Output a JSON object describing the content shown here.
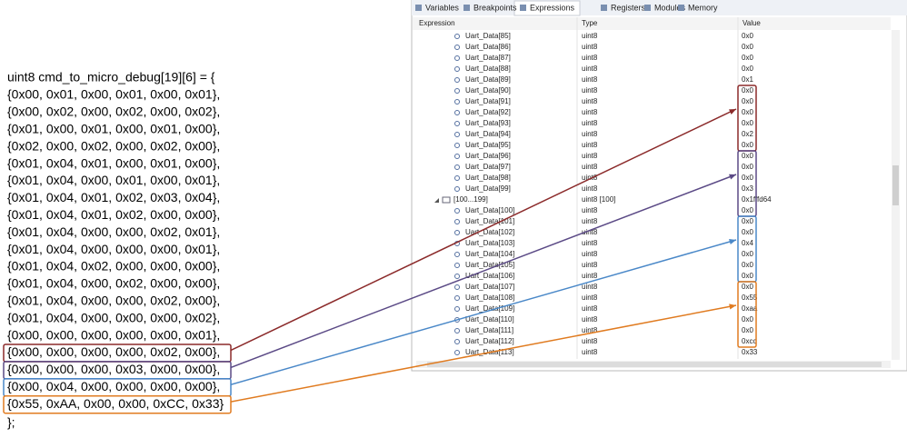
{
  "code": {
    "header": "uint8 cmd_to_micro_debug[19][6] = {",
    "rows": [
      "{0x00, 0x01, 0x00, 0x01, 0x00, 0x01},",
      "{0x00, 0x02, 0x00, 0x02, 0x00, 0x02},",
      "{0x01, 0x00, 0x01, 0x00, 0x01, 0x00},",
      "{0x02, 0x00, 0x02, 0x00, 0x02, 0x00},",
      "{0x01, 0x04, 0x01, 0x00, 0x01, 0x00},",
      "{0x01, 0x04, 0x00, 0x01, 0x00, 0x01},",
      "{0x01, 0x04, 0x01, 0x02, 0x03, 0x04},",
      "{0x01, 0x04, 0x01, 0x02, 0x00, 0x00},",
      "{0x01, 0x04, 0x00, 0x00, 0x02, 0x01},",
      "{0x01, 0x04, 0x00, 0x00, 0x00, 0x01},",
      "{0x01, 0x04, 0x02, 0x00, 0x00, 0x00},",
      "{0x01, 0x04, 0x00, 0x02, 0x00, 0x00},",
      "{0x01, 0x04, 0x00, 0x00, 0x02, 0x00},",
      "{0x01, 0x04, 0x00, 0x00, 0x00, 0x02},",
      "{0x00, 0x00, 0x00, 0x00, 0x00, 0x01},",
      "{0x00, 0x00, 0x00, 0x00, 0x02, 0x00},",
      "{0x00, 0x00, 0x00, 0x03, 0x00, 0x00},",
      "{0x00, 0x04, 0x00, 0x00, 0x00, 0x00},",
      "{0x55, 0xAA, 0x00, 0x00, 0xCC, 0x33}"
    ],
    "footer": "};"
  },
  "panel": {
    "tabs": [
      "Variables",
      "Breakpoints",
      "Expressions",
      "Registers",
      "Modules",
      "Memory"
    ],
    "columns": [
      "Expression",
      "Type",
      "Value"
    ],
    "rows": [
      [
        "Uart_Data[85]",
        "uint8",
        "0x0"
      ],
      [
        "Uart_Data[86]",
        "uint8",
        "0x0"
      ],
      [
        "Uart_Data[87]",
        "uint8",
        "0x0"
      ],
      [
        "Uart_Data[88]",
        "uint8",
        "0x0"
      ],
      [
        "Uart_Data[89]",
        "uint8",
        "0x1"
      ],
      [
        "Uart_Data[90]",
        "uint8",
        "0x0"
      ],
      [
        "Uart_Data[91]",
        "uint8",
        "0x0"
      ],
      [
        "Uart_Data[92]",
        "uint8",
        "0x0"
      ],
      [
        "Uart_Data[93]",
        "uint8",
        "0x0"
      ],
      [
        "Uart_Data[94]",
        "uint8",
        "0x2"
      ],
      [
        "Uart_Data[95]",
        "uint8",
        "0x0"
      ],
      [
        "Uart_Data[96]",
        "uint8",
        "0x0"
      ],
      [
        "Uart_Data[97]",
        "uint8",
        "0x0"
      ],
      [
        "Uart_Data[98]",
        "uint8",
        "0x0"
      ],
      [
        "Uart_Data[99]",
        "uint8",
        "0x3"
      ],
      [
        "[100...199]",
        "uint8 [100]",
        "0x1fffd64"
      ],
      [
        "Uart_Data[100]",
        "uint8",
        "0x0"
      ],
      [
        "Uart_Data[101]",
        "uint8",
        "0x0"
      ],
      [
        "Uart_Data[102]",
        "uint8",
        "0x0"
      ],
      [
        "Uart_Data[103]",
        "uint8",
        "0x4"
      ],
      [
        "Uart_Data[104]",
        "uint8",
        "0x0"
      ],
      [
        "Uart_Data[105]",
        "uint8",
        "0x0"
      ],
      [
        "Uart_Data[106]",
        "uint8",
        "0x0"
      ],
      [
        "Uart_Data[107]",
        "uint8",
        "0x0"
      ],
      [
        "Uart_Data[108]",
        "uint8",
        "0x55"
      ],
      [
        "Uart_Data[109]",
        "uint8",
        "0xaa"
      ],
      [
        "Uart_Data[110]",
        "uint8",
        "0x0"
      ],
      [
        "Uart_Data[111]",
        "uint8",
        "0x0"
      ],
      [
        "Uart_Data[112]",
        "uint8",
        "0xcc"
      ],
      [
        "Uart_Data[113]",
        "uint8",
        "0x33"
      ]
    ]
  }
}
